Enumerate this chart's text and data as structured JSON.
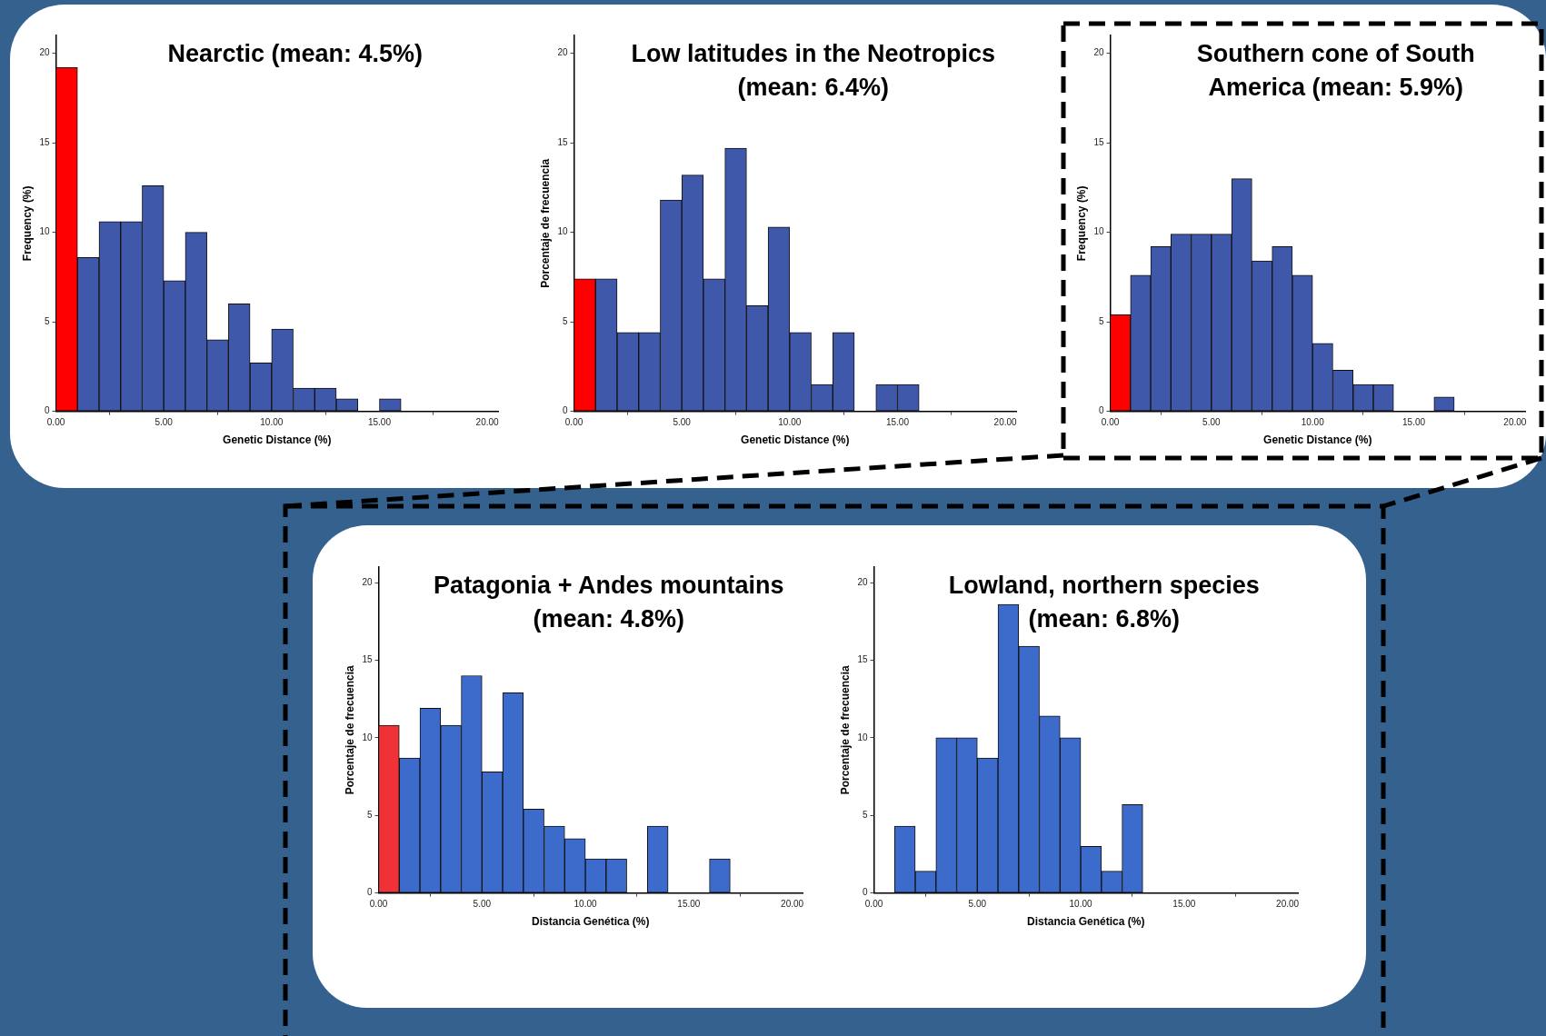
{
  "chart_data": [
    {
      "type": "histogram",
      "title": "Nearctic (mean: 4.5%)",
      "xlabel": "Genetic Distance (%)",
      "ylabel": "Frequency (%)",
      "bins": [
        0,
        1,
        2,
        3,
        4,
        5,
        6,
        7,
        8,
        9,
        10,
        11,
        12,
        13,
        14,
        15,
        16
      ],
      "values": [
        19.2,
        8.6,
        10.6,
        10.6,
        12.6,
        7.3,
        10.0,
        4.0,
        6.0,
        2.7,
        4.6,
        1.3,
        1.3,
        0.7,
        0,
        0.7
      ],
      "colors": [
        "#ff0000",
        "#3f58aa",
        "#3f58aa",
        "#3f58aa",
        "#3f58aa",
        "#3f58aa",
        "#3f58aa",
        "#3f58aa",
        "#3f58aa",
        "#3f58aa",
        "#3f58aa",
        "#3f58aa",
        "#3f58aa",
        "#3f58aa",
        "#3f58aa",
        "#3f58aa"
      ],
      "xlim": [
        0,
        20.5
      ],
      "ylim": [
        0,
        21
      ],
      "xticks": [
        {
          "value": 0,
          "label": "0.00"
        },
        {
          "value": 5,
          "label": "5.00"
        },
        {
          "value": 10,
          "label": "10.00"
        },
        {
          "value": 15,
          "label": "15.00"
        },
        {
          "value": 20,
          "label": "20.00"
        }
      ],
      "yticks": [
        0,
        5,
        10,
        15,
        20
      ]
    },
    {
      "type": "histogram",
      "title": "Low latitudes in the Neotropics (mean: 6.4%)",
      "xlabel": "Genetic Distance (%)",
      "ylabel": "Porcentaje de frecuencia",
      "bins": [
        0,
        1,
        2,
        3,
        4,
        5,
        6,
        7,
        8,
        9,
        10,
        11,
        12,
        13,
        14,
        15,
        16
      ],
      "values": [
        7.4,
        7.4,
        4.4,
        4.4,
        11.8,
        13.2,
        7.4,
        14.7,
        5.9,
        10.3,
        4.4,
        1.5,
        4.4,
        0,
        1.5,
        1.5
      ],
      "colors": [
        "#ff0000",
        "#3f58aa",
        "#3f58aa",
        "#3f58aa",
        "#3f58aa",
        "#3f58aa",
        "#3f58aa",
        "#3f58aa",
        "#3f58aa",
        "#3f58aa",
        "#3f58aa",
        "#3f58aa",
        "#3f58aa",
        "#3f58aa",
        "#3f58aa",
        "#3f58aa"
      ],
      "xlim": [
        0,
        20.5
      ],
      "ylim": [
        0,
        21
      ],
      "xticks": [
        {
          "value": 0,
          "label": "0.00"
        },
        {
          "value": 5,
          "label": "5.00"
        },
        {
          "value": 10,
          "label": "10.00"
        },
        {
          "value": 15,
          "label": "15.00"
        },
        {
          "value": 20,
          "label": "20.00"
        }
      ],
      "yticks": [
        0,
        5,
        10,
        15,
        20
      ]
    },
    {
      "type": "histogram",
      "title": "Southern cone of South America (mean: 5.9%)",
      "xlabel": "Genetic Distance (%)",
      "ylabel": "Frequency (%)",
      "bins": [
        0,
        1,
        2,
        3,
        4,
        5,
        6,
        7,
        8,
        9,
        10,
        11,
        12,
        13,
        14,
        15,
        16,
        17
      ],
      "values": [
        5.4,
        7.6,
        9.2,
        9.9,
        9.9,
        9.9,
        13.0,
        8.4,
        9.2,
        7.6,
        3.8,
        2.3,
        1.5,
        1.5,
        0,
        0,
        0.8
      ],
      "colors": [
        "#ff0000",
        "#3f58aa",
        "#3f58aa",
        "#3f58aa",
        "#3f58aa",
        "#3f58aa",
        "#3f58aa",
        "#3f58aa",
        "#3f58aa",
        "#3f58aa",
        "#3f58aa",
        "#3f58aa",
        "#3f58aa",
        "#3f58aa",
        "#3f58aa",
        "#3f58aa",
        "#3f58aa"
      ],
      "xlim": [
        0,
        20.5
      ],
      "ylim": [
        0,
        21
      ],
      "xticks": [
        {
          "value": 0,
          "label": "0.00"
        },
        {
          "value": 5,
          "label": "5.00"
        },
        {
          "value": 10,
          "label": "10.00"
        },
        {
          "value": 15,
          "label": "15.00"
        },
        {
          "value": 20,
          "label": "20.00"
        }
      ],
      "yticks": [
        0,
        5,
        10,
        15,
        20
      ]
    },
    {
      "type": "histogram",
      "title": "Patagonia + Andes mountains (mean: 4.8%)",
      "xlabel": "Distancia Genética (%)",
      "ylabel": "Porcentaje de frecuencia",
      "bins": [
        0,
        1,
        2,
        3,
        4,
        5,
        6,
        7,
        8,
        9,
        10,
        11,
        12,
        13,
        14,
        15,
        16,
        17
      ],
      "values": [
        10.8,
        8.7,
        11.9,
        10.8,
        14.0,
        7.8,
        12.9,
        5.4,
        4.3,
        3.5,
        2.2,
        2.2,
        0,
        4.3,
        0,
        0,
        2.2
      ],
      "colors": [
        "#ee3237",
        "#3d6bcc",
        "#3d6bcc",
        "#3d6bcc",
        "#3d6bcc",
        "#3d6bcc",
        "#3d6bcc",
        "#3d6bcc",
        "#3d6bcc",
        "#3d6bcc",
        "#3d6bcc",
        "#3d6bcc",
        "#3d6bcc",
        "#3d6bcc",
        "#3d6bcc",
        "#3d6bcc",
        "#3d6bcc"
      ],
      "xlim": [
        0,
        20.5
      ],
      "ylim": [
        0,
        21
      ],
      "xticks": [
        {
          "value": 0,
          "label": "0.00"
        },
        {
          "value": 5,
          "label": "5.00"
        },
        {
          "value": 10,
          "label": "10.00"
        },
        {
          "value": 15,
          "label": "15.00"
        },
        {
          "value": 20,
          "label": "20.00"
        }
      ],
      "yticks": [
        0,
        5,
        10,
        15,
        20
      ]
    },
    {
      "type": "histogram",
      "title": "Lowland, northern species (mean: 6.8%)",
      "xlabel": "Distancia Genética (%)",
      "ylabel": "Porcentaje de frecuencia",
      "bins": [
        0,
        1,
        2,
        3,
        4,
        5,
        6,
        7,
        8,
        9,
        10,
        11,
        12,
        13
      ],
      "values": [
        0,
        4.3,
        1.4,
        10.0,
        10.0,
        8.7,
        18.6,
        15.9,
        11.4,
        10.0,
        3.0,
        1.4,
        5.7
      ],
      "colors": [
        "#3d6bcc",
        "#3d6bcc",
        "#3d6bcc",
        "#3d6bcc",
        "#3d6bcc",
        "#3d6bcc",
        "#3d6bcc",
        "#3d6bcc",
        "#3d6bcc",
        "#3d6bcc",
        "#3d6bcc",
        "#3d6bcc",
        "#3d6bcc"
      ],
      "xlim": [
        0,
        20.5
      ],
      "ylim": [
        0,
        21
      ],
      "xticks": [
        {
          "value": 0,
          "label": "0.00"
        },
        {
          "value": 5,
          "label": "5.00"
        },
        {
          "value": 10,
          "label": "10.00"
        },
        {
          "value": 15,
          "label": "15.00"
        },
        {
          "value": 20,
          "label": "20.00"
        }
      ],
      "yticks": [
        0,
        5,
        10,
        15,
        20
      ]
    }
  ]
}
